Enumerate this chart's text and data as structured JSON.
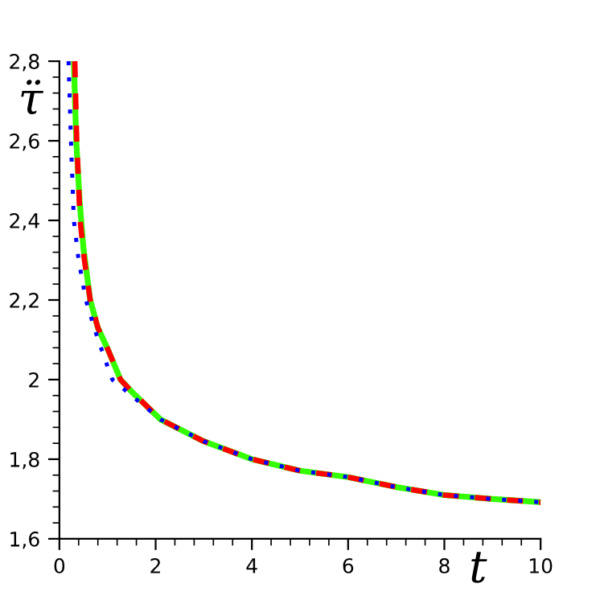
{
  "chart_data": {
    "type": "line",
    "xlabel": "t",
    "ylabel": "τ̈",
    "xlim": [
      0,
      10
    ],
    "ylim": [
      1.6,
      2.8
    ],
    "xticks": [
      0,
      2,
      4,
      6,
      8,
      10,
      {
        "value": 0.4,
        "label": null
      },
      {
        "value": 0.8,
        "label": null
      },
      {
        "value": 1.2,
        "label": null
      },
      {
        "value": 1.6,
        "label": null
      },
      {
        "value": 2.4,
        "label": null
      },
      {
        "value": 2.8,
        "label": null
      },
      {
        "value": 3.2,
        "label": null
      },
      {
        "value": 3.6,
        "label": null
      },
      {
        "value": 4.4,
        "label": null
      },
      {
        "value": 4.8,
        "label": null
      },
      {
        "value": 5.2,
        "label": null
      },
      {
        "value": 5.6,
        "label": null
      },
      {
        "value": 6.4,
        "label": null
      },
      {
        "value": 6.8,
        "label": null
      },
      {
        "value": 7.2,
        "label": null
      },
      {
        "value": 7.6,
        "label": null
      },
      {
        "value": 8.4,
        "label": null
      },
      {
        "value": 8.8,
        "label": null
      },
      {
        "value": 9.2,
        "label": null
      },
      {
        "value": 9.6,
        "label": null
      }
    ],
    "yticks": [
      {
        "value": 1.6,
        "label": "1,6"
      },
      {
        "value": 1.8,
        "label": "1,8"
      },
      2,
      {
        "value": 2.2,
        "label": "2,2"
      },
      {
        "value": 2.4,
        "label": "2,4"
      },
      {
        "value": 2.6,
        "label": "2,6"
      },
      {
        "value": 2.8,
        "label": "2,8"
      },
      {
        "value": 1.64,
        "label": null
      },
      {
        "value": 1.68,
        "label": null
      },
      {
        "value": 1.72,
        "label": null
      },
      {
        "value": 1.76,
        "label": null
      },
      {
        "value": 1.84,
        "label": null
      },
      {
        "value": 1.88,
        "label": null
      },
      {
        "value": 1.92,
        "label": null
      },
      {
        "value": 1.96,
        "label": null
      },
      {
        "value": 2.04,
        "label": null
      },
      {
        "value": 2.08,
        "label": null
      },
      {
        "value": 2.12,
        "label": null
      },
      {
        "value": 2.16,
        "label": null
      },
      {
        "value": 2.24,
        "label": null
      },
      {
        "value": 2.28,
        "label": null
      },
      {
        "value": 2.32,
        "label": null
      },
      {
        "value": 2.36,
        "label": null
      },
      {
        "value": 2.44,
        "label": null
      },
      {
        "value": 2.48,
        "label": null
      },
      {
        "value": 2.52,
        "label": null
      },
      {
        "value": 2.56,
        "label": null
      },
      {
        "value": 2.64,
        "label": null
      },
      {
        "value": 2.68,
        "label": null
      },
      {
        "value": 2.72,
        "label": null
      },
      {
        "value": 2.76,
        "label": null
      }
    ],
    "grid": false,
    "legend": false,
    "marker": "none",
    "series": [
      {
        "color": "#33ff00",
        "line_style": "solid",
        "x": [
          0.3,
          0.35,
          0.42,
          0.5,
          0.64,
          0.8,
          1.0,
          1.27,
          1.5,
          2.1,
          3,
          4,
          5,
          6,
          7,
          8,
          9,
          10
        ],
        "values": [
          2.8,
          2.6,
          2.45,
          2.33,
          2.2,
          2.13,
          2.078,
          2.0,
          1.97,
          1.9,
          1.845,
          1.8,
          1.771,
          1.755,
          1.73,
          1.71,
          1.7,
          1.692
        ]
      },
      {
        "color": "#ff0000",
        "line_style": "dashed",
        "x": [
          0.32,
          0.36,
          0.43,
          0.52,
          0.64,
          0.8,
          1.0,
          1.27,
          1.5,
          2.1,
          3,
          4,
          5,
          6,
          7,
          8,
          9,
          10
        ],
        "values": [
          2.8,
          2.6,
          2.4,
          2.3,
          2.2,
          2.13,
          2.078,
          2.0,
          1.97,
          1.9,
          1.845,
          1.8,
          1.771,
          1.755,
          1.73,
          1.71,
          1.7,
          1.692
        ]
      },
      {
        "color": "#0000ff",
        "line_style": "dotted",
        "x": [
          0.19,
          0.24,
          0.3,
          0.4,
          0.55,
          0.75,
          0.95,
          1.1,
          1.5,
          2.1,
          3,
          4,
          5,
          6,
          7,
          8,
          9,
          10
        ],
        "values": [
          2.8,
          2.6,
          2.4,
          2.3,
          2.2,
          2.12,
          2.05,
          2.0,
          1.96,
          1.9,
          1.845,
          1.8,
          1.771,
          1.755,
          1.73,
          1.71,
          1.7,
          1.692
        ]
      }
    ]
  }
}
